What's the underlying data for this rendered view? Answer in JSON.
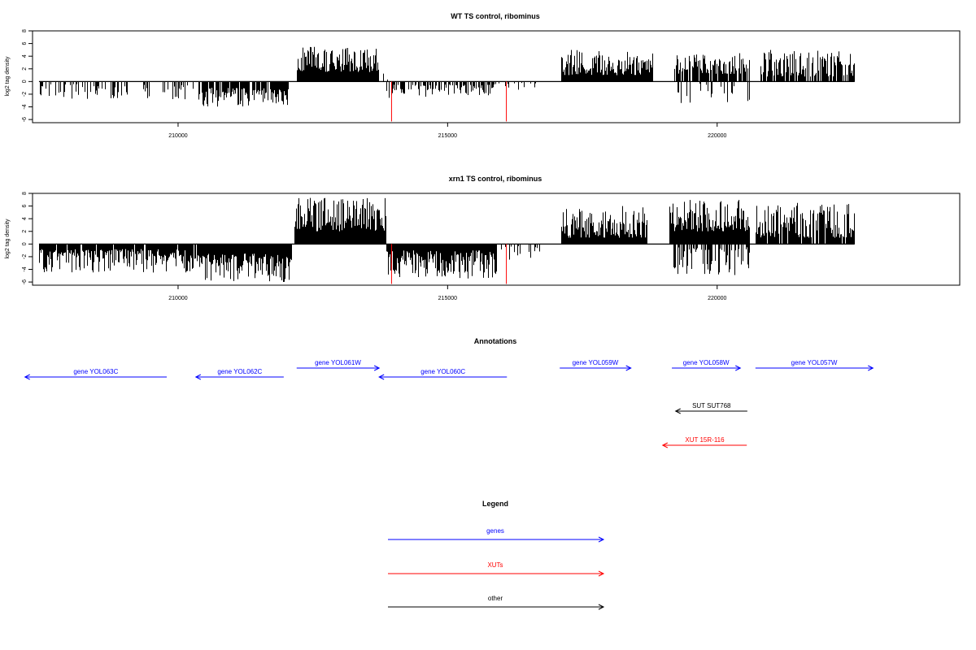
{
  "chart_data": [
    {
      "type": "bar",
      "title": "WT TS control, ribominus",
      "ylabel": "log2 tag density",
      "xlabel": "",
      "xlim": [
        207300,
        224500
      ],
      "ylim": [
        -6.5,
        8
      ],
      "x_ticks": [
        210000,
        215000,
        220000
      ],
      "x_tick_labels": [
        "210000",
        "215000",
        "220000"
      ],
      "y_ticks": [
        -6,
        -4,
        -2,
        0,
        2,
        4,
        6,
        8
      ],
      "y_tick_labels": [
        "-6",
        "-4",
        "-2",
        "0",
        "2",
        "4",
        "6",
        "8"
      ],
      "grid": false,
      "series": [
        {
          "color": "#000000",
          "segments": [
            {
              "start": 207420,
              "end": 209600,
              "strand": "-",
              "min": 0.4,
              "max": 2.8,
              "density": 0.35
            },
            {
              "start": 209600,
              "end": 210450,
              "strand": "-",
              "min": 0.5,
              "max": 3.0,
              "density": 0.25
            },
            {
              "start": 210450,
              "end": 212050,
              "strand": "-",
              "min": 1.0,
              "max": 4.0,
              "density": 0.9
            },
            {
              "start": 212200,
              "end": 213700,
              "strand": "+",
              "min": 1.5,
              "max": 5.5,
              "density": 1.0
            },
            {
              "start": 213700,
              "end": 213900,
              "strand": "+",
              "min": 0.3,
              "max": 2.0,
              "density": 0.3
            },
            {
              "start": 213850,
              "end": 214700,
              "strand": "-",
              "min": 0.5,
              "max": 2.8,
              "density": 0.55
            },
            {
              "start": 214700,
              "end": 215900,
              "strand": "-",
              "min": 0.4,
              "max": 2.2,
              "density": 0.55
            },
            {
              "start": 215900,
              "end": 216700,
              "strand": "-",
              "min": 0.2,
              "max": 1.3,
              "density": 0.2
            },
            {
              "start": 217100,
              "end": 218800,
              "strand": "+",
              "min": 1.0,
              "max": 5.0,
              "density": 1.0
            },
            {
              "start": 219200,
              "end": 220600,
              "strand": "+",
              "min": 1.2,
              "max": 4.5,
              "density": 0.75
            },
            {
              "start": 219200,
              "end": 220600,
              "strand": "-",
              "min": 0.3,
              "max": 3.5,
              "density": 0.2
            },
            {
              "start": 220800,
              "end": 222550,
              "strand": "+",
              "min": 0.8,
              "max": 5.0,
              "density": 0.75
            }
          ]
        },
        {
          "color": "#ff0000",
          "spikes": [
            {
              "x": 213960,
              "y": -6.3
            },
            {
              "x": 216090,
              "y": -6.3
            }
          ]
        }
      ]
    },
    {
      "type": "bar",
      "title": "xrn1 TS control, ribominus",
      "ylabel": "log2 tag density",
      "xlabel": "",
      "xlim": [
        207300,
        224500
      ],
      "ylim": [
        -6.5,
        8
      ],
      "x_ticks": [
        210000,
        215000,
        220000
      ],
      "x_tick_labels": [
        "210000",
        "215000",
        "220000"
      ],
      "y_ticks": [
        -6,
        -4,
        -2,
        0,
        2,
        4,
        6,
        8
      ],
      "y_tick_labels": [
        "-6",
        "-4",
        "-2",
        "0",
        "2",
        "4",
        "6",
        "8"
      ],
      "grid": false,
      "series": [
        {
          "color": "#000000",
          "segments": [
            {
              "start": 207420,
              "end": 210450,
              "strand": "-",
              "min": 0.8,
              "max": 4.5,
              "density": 0.9
            },
            {
              "start": 210450,
              "end": 212100,
              "strand": "-",
              "min": 1.5,
              "max": 6.0,
              "density": 1.0
            },
            {
              "start": 212150,
              "end": 213850,
              "strand": "+",
              "min": 2.0,
              "max": 7.3,
              "density": 1.0
            },
            {
              "start": 213850,
              "end": 215900,
              "strand": "-",
              "min": 1.0,
              "max": 5.5,
              "density": 1.0
            },
            {
              "start": 215900,
              "end": 216700,
              "strand": "-",
              "min": 0.3,
              "max": 2.5,
              "density": 0.3
            },
            {
              "start": 216700,
              "end": 216900,
              "strand": "+",
              "min": 0.5,
              "max": 2.0,
              "density": 0.1
            },
            {
              "start": 217100,
              "end": 218700,
              "strand": "+",
              "min": 1.0,
              "max": 6.0,
              "density": 1.0
            },
            {
              "start": 219100,
              "end": 220600,
              "strand": "+",
              "min": 2.0,
              "max": 7.0,
              "density": 1.0
            },
            {
              "start": 219100,
              "end": 220600,
              "strand": "-",
              "min": 0.5,
              "max": 5.0,
              "density": 0.5
            },
            {
              "start": 220700,
              "end": 222550,
              "strand": "+",
              "min": 1.0,
              "max": 6.5,
              "density": 0.9
            }
          ]
        },
        {
          "color": "#ff0000",
          "spikes": [
            {
              "x": 213960,
              "y": -6.3
            },
            {
              "x": 216090,
              "y": -6.3
            }
          ]
        }
      ]
    }
  ],
  "annotations": {
    "title": "Annotations",
    "items": [
      {
        "label": "gene YOL063C",
        "type": "gene",
        "strand": "-",
        "start": 207160,
        "end": 209790,
        "row": 1
      },
      {
        "label": "gene YOL062C",
        "type": "gene",
        "strand": "-",
        "start": 210330,
        "end": 211960,
        "row": 1
      },
      {
        "label": "gene YOL061W",
        "type": "gene",
        "strand": "+",
        "start": 212200,
        "end": 213730,
        "row": 0
      },
      {
        "label": "gene YOL060C",
        "type": "gene",
        "strand": "-",
        "start": 213730,
        "end": 216100,
        "row": 1
      },
      {
        "label": "gene YOL059W",
        "type": "gene",
        "strand": "+",
        "start": 217080,
        "end": 218400,
        "row": 0
      },
      {
        "label": "gene YOL058W",
        "type": "gene",
        "strand": "+",
        "start": 219160,
        "end": 220430,
        "row": 0
      },
      {
        "label": "gene YOL057W",
        "type": "gene",
        "strand": "+",
        "start": 220710,
        "end": 222890,
        "row": 0
      },
      {
        "label": "SUT SUT768",
        "type": "other",
        "strand": "-",
        "start": 219230,
        "end": 220560,
        "row": 2
      },
      {
        "label": "XUT 15R-116",
        "type": "xut",
        "strand": "-",
        "start": 218990,
        "end": 220550,
        "row": 3
      }
    ]
  },
  "legend": {
    "title": "Legend",
    "items": [
      {
        "label": "genes",
        "type": "gene"
      },
      {
        "label": "XUTs",
        "type": "xut"
      },
      {
        "label": "other",
        "type": "other"
      }
    ]
  },
  "colors": {
    "gene": "#0000ff",
    "xut": "#ff0000",
    "other": "#000000",
    "axis": "#000000"
  }
}
